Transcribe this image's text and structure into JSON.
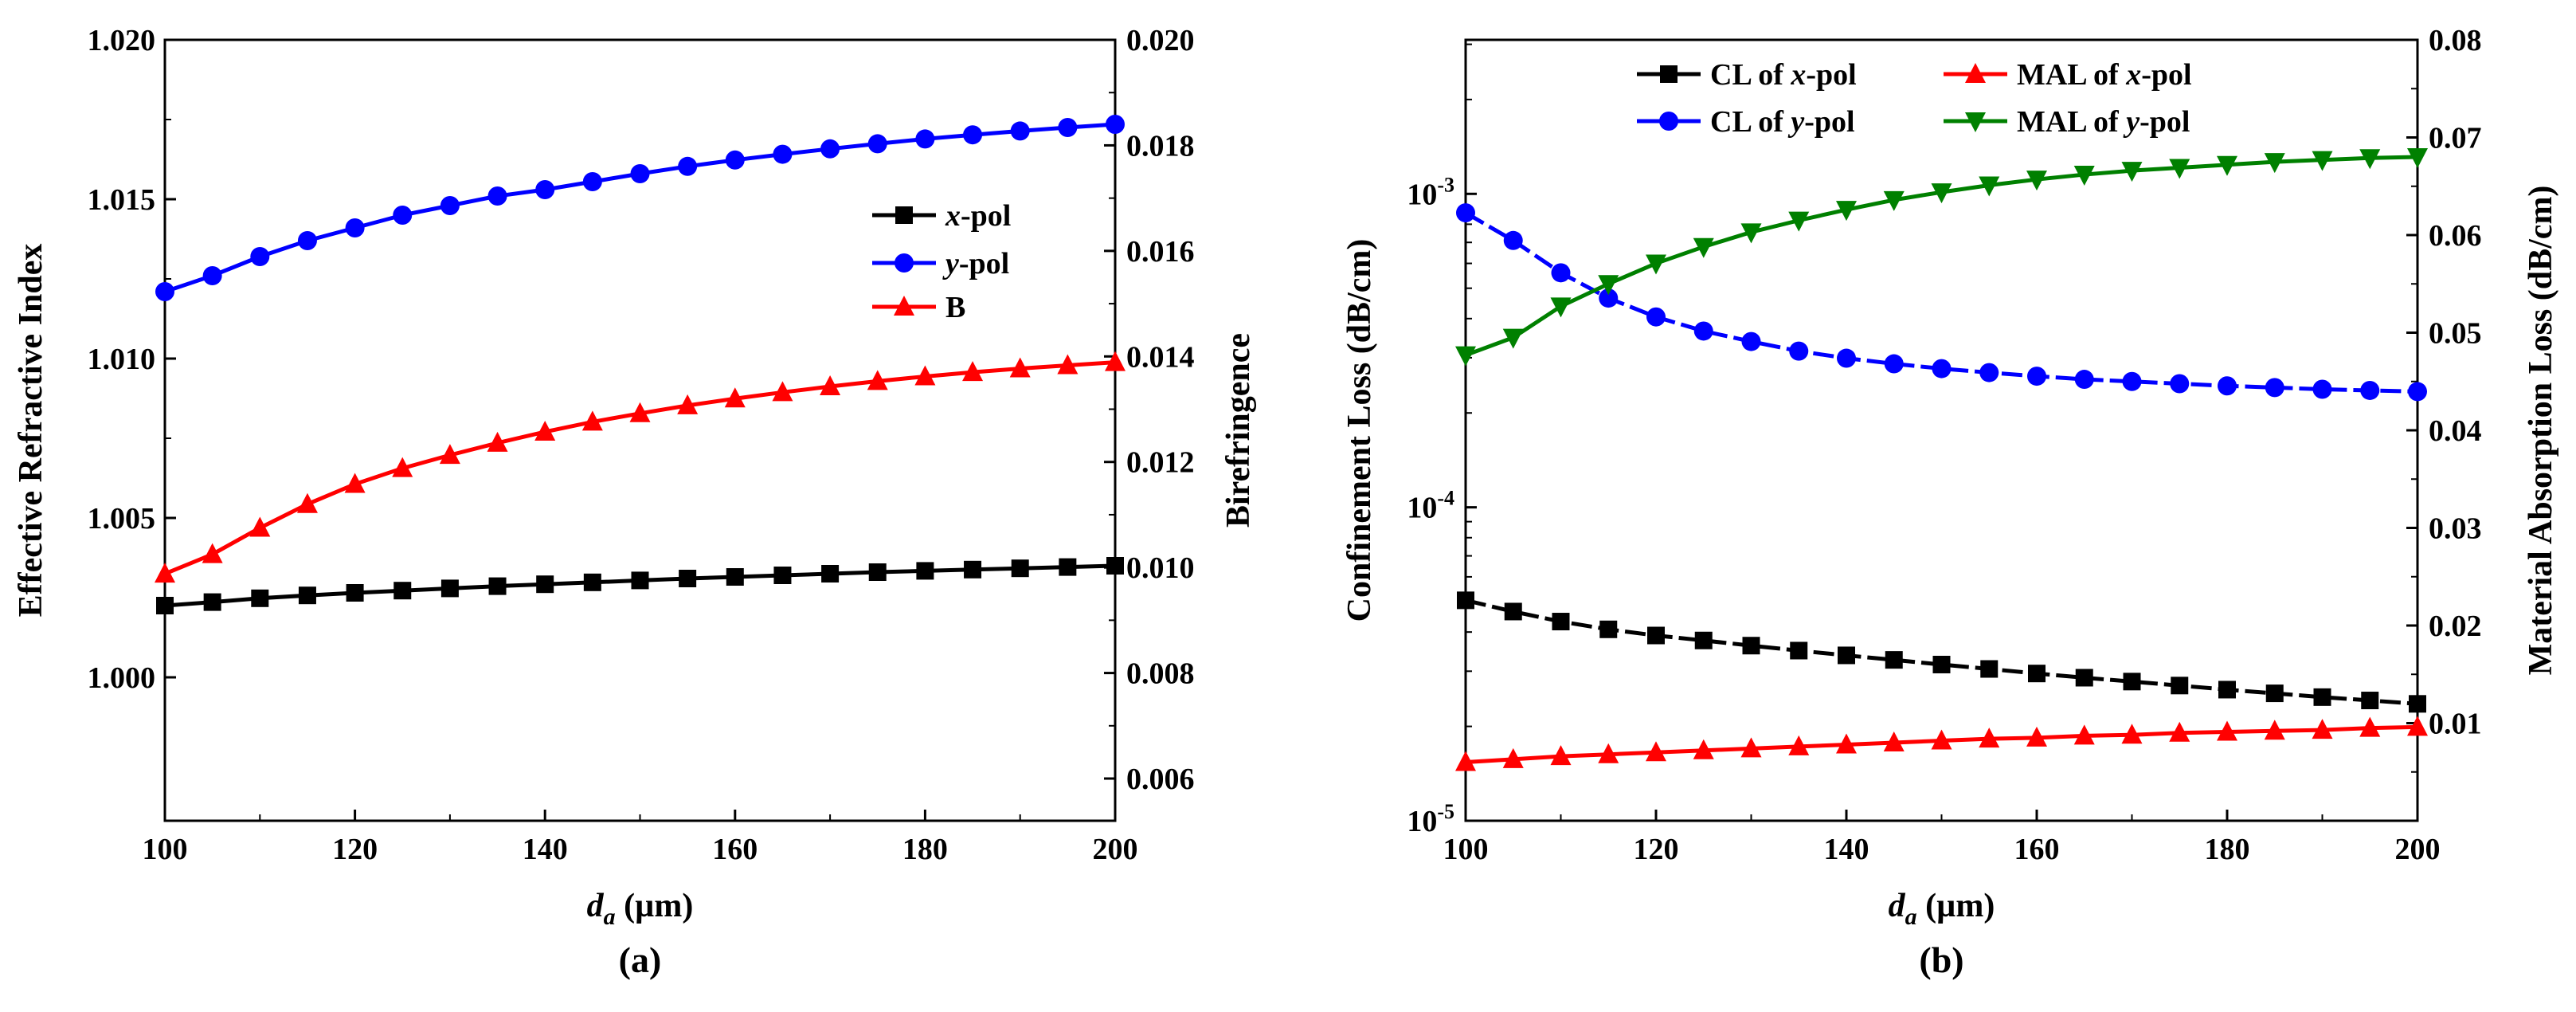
{
  "chart_data": [
    {
      "id": "a",
      "type": "line",
      "caption": "(a)",
      "title": "",
      "xlabel_main": "d",
      "xlabel_sub": "a",
      "xlabel_unit": " (µm)",
      "ylabel_left": "Effective Refractive Index",
      "ylabel_right": "Birefringence",
      "x_range": [
        100,
        200
      ],
      "x_ticks": [
        "100",
        "120",
        "140",
        "160",
        "180",
        "200"
      ],
      "x_tick_values": [
        100,
        120,
        140,
        160,
        180,
        200
      ],
      "y_left_range": [
        0.9955,
        1.02
      ],
      "y_left_ticks": [
        "1.000",
        "1.005",
        "1.010",
        "1.015",
        "1.020"
      ],
      "y_left_tick_values": [
        1.0,
        1.005,
        1.01,
        1.015,
        1.02
      ],
      "y_right_range": [
        0.0052,
        0.02
      ],
      "y_right_ticks": [
        "0.006",
        "0.008",
        "0.010",
        "0.012",
        "0.014",
        "0.016",
        "0.018",
        "0.020"
      ],
      "y_right_tick_values": [
        0.006,
        0.008,
        0.01,
        0.012,
        0.014,
        0.016,
        0.018,
        0.02
      ],
      "x": [
        100,
        105,
        110,
        115,
        120,
        125,
        130,
        135,
        140,
        145,
        150,
        155,
        160,
        165,
        170,
        175,
        180,
        185,
        190,
        195,
        200
      ],
      "series": [
        {
          "name_italic": "x",
          "name_rest": "-pol",
          "axis": "left",
          "color": "#000000",
          "marker": "square",
          "values": [
            1.00225,
            1.00236,
            1.00248,
            1.00257,
            1.00265,
            1.00272,
            1.00279,
            1.00286,
            1.00292,
            1.00298,
            1.00304,
            1.0031,
            1.00315,
            1.0032,
            1.00325,
            1.0033,
            1.00334,
            1.00338,
            1.00342,
            1.00346,
            1.0035
          ]
        },
        {
          "name_italic": "y",
          "name_rest": "-pol",
          "axis": "left",
          "color": "#0000ff",
          "marker": "circle",
          "values": [
            1.0121,
            1.0126,
            1.0132,
            1.0137,
            1.0141,
            1.0145,
            1.0148,
            1.0151,
            1.0153,
            1.01555,
            1.0158,
            1.01603,
            1.01623,
            1.01641,
            1.01658,
            1.01674,
            1.01689,
            1.01702,
            1.01714,
            1.01725,
            1.01735
          ]
        },
        {
          "name_italic": "",
          "name_rest": "B",
          "axis": "right",
          "color": "#ff0000",
          "marker": "triangle-up",
          "values": [
            0.00988,
            0.01025,
            0.01075,
            0.0112,
            0.01158,
            0.01188,
            0.01213,
            0.01236,
            0.01257,
            0.01276,
            0.01292,
            0.01307,
            0.0132,
            0.01332,
            0.01343,
            0.01353,
            0.01362,
            0.0137,
            0.01377,
            0.01383,
            0.01389
          ]
        }
      ],
      "legend_position": "right, middle"
    },
    {
      "id": "b",
      "type": "line",
      "caption": "(b)",
      "title": "",
      "xlabel_main": "d",
      "xlabel_sub": "a",
      "xlabel_unit": " (µm)",
      "ylabel_left": "Confinement Loss (dB/cm)",
      "ylabel_right": "Material Absorption Loss (dB/cm)",
      "x_range": [
        100,
        200
      ],
      "x_ticks": [
        "100",
        "120",
        "140",
        "160",
        "180",
        "200"
      ],
      "x_tick_values": [
        100,
        120,
        140,
        160,
        180,
        200
      ],
      "y_left_scale": "log",
      "y_left_range": [
        1e-05,
        0.0031
      ],
      "y_left_ticks": [
        {
          "base": "10",
          "exp": "-5"
        },
        {
          "base": "10",
          "exp": "-4"
        },
        {
          "base": "10",
          "exp": "-3"
        }
      ],
      "y_left_tick_values": [
        1e-05,
        0.0001,
        0.001
      ],
      "y_right_range": [
        0.0,
        0.08
      ],
      "y_right_ticks": [
        "0.01",
        "0.02",
        "0.03",
        "0.04",
        "0.05",
        "0.06",
        "0.07",
        "0.08"
      ],
      "y_right_tick_values": [
        0.01,
        0.02,
        0.03,
        0.04,
        0.05,
        0.06,
        0.07,
        0.08
      ],
      "x": [
        100,
        105,
        110,
        115,
        120,
        125,
        130,
        135,
        140,
        145,
        150,
        155,
        160,
        165,
        170,
        175,
        180,
        185,
        190,
        195,
        200
      ],
      "series": [
        {
          "name_prefix": "CL of ",
          "name_italic": "x",
          "name_rest": "-pol",
          "axis": "left",
          "color": "#000000",
          "marker": "square",
          "values": [
            5.05e-05,
            4.65e-05,
            4.32e-05,
            4.08e-05,
            3.9e-05,
            3.76e-05,
            3.62e-05,
            3.49e-05,
            3.37e-05,
            3.26e-05,
            3.15e-05,
            3.05e-05,
            2.95e-05,
            2.86e-05,
            2.78e-05,
            2.7e-05,
            2.62e-05,
            2.55e-05,
            2.48e-05,
            2.42e-05,
            2.36e-05
          ]
        },
        {
          "name_prefix": "CL of ",
          "name_italic": "y",
          "name_rest": "-pol",
          "axis": "left",
          "color": "#0000ff",
          "marker": "circle",
          "values": [
            0.00087,
            0.00071,
            0.00056,
            0.000465,
            0.000405,
            0.000365,
            0.000338,
            0.000315,
            0.000299,
            0.000287,
            0.000277,
            0.000269,
            0.000262,
            0.000256,
            0.000252,
            0.000248,
            0.000244,
            0.000241,
            0.000238,
            0.000236,
            0.000234
          ]
        },
        {
          "name_prefix": "MAL of ",
          "name_italic": "x",
          "name_rest": "-pol",
          "axis": "right",
          "color": "#ff0000",
          "marker": "triangle-up",
          "values": [
            0.006,
            0.0063,
            0.0066,
            0.0068,
            0.007,
            0.0072,
            0.0074,
            0.0076,
            0.0078,
            0.008,
            0.0082,
            0.0084,
            0.0085,
            0.0087,
            0.0088,
            0.009,
            0.0091,
            0.0092,
            0.0093,
            0.0095,
            0.0096
          ]
        },
        {
          "name_prefix": "MAL of ",
          "name_italic": "y",
          "name_rest": "-pol",
          "axis": "right",
          "color": "#008000",
          "marker": "triangle-down",
          "values": [
            0.0477,
            0.0495,
            0.0527,
            0.055,
            0.0571,
            0.0588,
            0.0603,
            0.0615,
            0.0626,
            0.0636,
            0.0644,
            0.0651,
            0.0657,
            0.0662,
            0.0666,
            0.0669,
            0.0672,
            0.0675,
            0.0677,
            0.0679,
            0.068
          ]
        }
      ],
      "legend_position": "top"
    }
  ]
}
